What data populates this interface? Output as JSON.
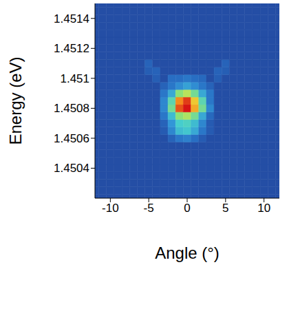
{
  "chart_data": {
    "type": "heatmap",
    "x_label": "Angle (°)",
    "y_label": "Energy (eV)",
    "xlim": [
      -12,
      12
    ],
    "ylim": [
      1.4502,
      1.4515
    ],
    "xticks": [
      -10,
      -5,
      0,
      5,
      10
    ],
    "yticks": [
      1.4504,
      1.4506,
      1.4508,
      1.451,
      1.4512,
      1.4514
    ],
    "zlim": [
      0,
      1
    ],
    "x": [
      -12,
      -11,
      -10,
      -9,
      -8,
      -7,
      -6,
      -5,
      -4,
      -3,
      -2,
      -1,
      0,
      1,
      2,
      3,
      4,
      5,
      6,
      7,
      8,
      9,
      10,
      11,
      12
    ],
    "y": [
      1.4502,
      1.45025,
      1.4503,
      1.45035,
      1.4504,
      1.45045,
      1.4505,
      1.45055,
      1.4506,
      1.45065,
      1.4507,
      1.45075,
      1.4508,
      1.45085,
      1.4509,
      1.45095,
      1.451,
      1.45105,
      1.4511,
      1.45115,
      1.4512,
      1.45125,
      1.4513,
      1.45135,
      1.4514,
      1.45145,
      1.4515
    ],
    "z": [
      [
        0,
        0,
        0,
        0,
        0,
        0,
        0,
        0,
        0,
        0,
        0,
        0,
        0,
        0,
        0,
        0,
        0,
        0,
        0,
        0,
        0,
        0,
        0,
        0,
        0
      ],
      [
        0,
        0,
        0,
        0,
        0,
        0,
        0,
        0,
        0,
        0,
        0,
        0,
        0,
        0,
        0,
        0,
        0,
        0,
        0,
        0,
        0,
        0,
        0,
        0,
        0
      ],
      [
        0,
        0,
        0,
        0,
        0,
        0,
        0,
        0,
        0,
        0,
        0,
        0,
        0,
        0,
        0,
        0,
        0,
        0,
        0,
        0,
        0,
        0,
        0,
        0,
        0
      ],
      [
        0,
        0,
        0,
        0,
        0,
        0,
        0,
        0,
        0,
        0,
        0,
        0,
        0,
        0,
        0,
        0,
        0,
        0,
        0,
        0,
        0,
        0,
        0,
        0,
        0
      ],
      [
        0,
        0,
        0,
        0,
        0,
        0,
        0,
        0,
        0,
        0,
        0,
        0,
        0,
        0,
        0,
        0,
        0,
        0,
        0,
        0,
        0,
        0,
        0,
        0,
        0
      ],
      [
        0,
        0,
        0,
        0,
        0,
        0,
        0,
        0,
        0,
        0,
        0,
        0,
        0,
        0,
        0,
        0,
        0,
        0,
        0,
        0,
        0,
        0,
        0,
        0,
        0
      ],
      [
        0,
        0,
        0,
        0,
        0,
        0,
        0,
        0,
        0,
        0,
        0,
        0,
        0,
        0,
        0,
        0,
        0,
        0,
        0,
        0,
        0,
        0,
        0,
        0,
        0
      ],
      [
        0,
        0,
        0,
        0,
        0,
        0,
        0,
        0,
        0,
        0,
        0,
        0,
        0,
        0,
        0,
        0,
        0,
        0,
        0,
        0,
        0,
        0,
        0,
        0,
        0
      ],
      [
        0,
        0,
        0,
        0,
        0,
        0,
        0,
        0,
        0,
        0,
        0.08,
        0.15,
        0.18,
        0.12,
        0.05,
        0,
        0,
        0,
        0,
        0,
        0,
        0,
        0,
        0,
        0
      ],
      [
        0,
        0,
        0,
        0,
        0,
        0,
        0,
        0,
        0,
        0.05,
        0.2,
        0.35,
        0.38,
        0.3,
        0.15,
        0.05,
        0,
        0,
        0,
        0,
        0,
        0,
        0,
        0,
        0
      ],
      [
        0,
        0,
        0,
        0,
        0,
        0,
        0,
        0,
        0,
        0.08,
        0.25,
        0.4,
        0.42,
        0.35,
        0.2,
        0.05,
        0,
        0,
        0,
        0,
        0,
        0,
        0,
        0,
        0
      ],
      [
        0,
        0,
        0,
        0,
        0,
        0,
        0,
        0,
        0,
        0.15,
        0.35,
        0.55,
        0.6,
        0.5,
        0.3,
        0.1,
        0,
        0,
        0,
        0,
        0,
        0,
        0,
        0,
        0
      ],
      [
        0,
        0,
        0,
        0,
        0,
        0,
        0,
        0,
        0,
        0.2,
        0.5,
        0.92,
        1,
        0.8,
        0.5,
        0.2,
        0,
        0,
        0,
        0,
        0,
        0,
        0,
        0,
        0
      ],
      [
        0,
        0,
        0,
        0,
        0,
        0,
        0,
        0,
        0,
        0.2,
        0.45,
        0.85,
        0.95,
        0.75,
        0.45,
        0.15,
        0,
        0,
        0,
        0,
        0,
        0,
        0,
        0,
        0
      ],
      [
        0,
        0,
        0,
        0,
        0,
        0,
        0,
        0,
        0,
        0.15,
        0.3,
        0.55,
        0.62,
        0.5,
        0.3,
        0.15,
        0,
        0,
        0,
        0,
        0,
        0,
        0,
        0,
        0
      ],
      [
        0,
        0,
        0,
        0,
        0,
        0,
        0,
        0,
        0,
        0.08,
        0.15,
        0.22,
        0.28,
        0.22,
        0.15,
        0.08,
        0,
        0,
        0,
        0,
        0,
        0,
        0,
        0,
        0
      ],
      [
        0,
        0,
        0,
        0,
        0,
        0,
        0,
        0,
        0.06,
        0,
        0.12,
        0.12,
        0.15,
        0.12,
        0.1,
        0,
        0.06,
        0,
        0,
        0,
        0,
        0,
        0,
        0,
        0
      ],
      [
        0,
        0,
        0,
        0,
        0,
        0,
        0,
        0.06,
        0.08,
        0,
        0,
        0,
        0,
        0,
        0,
        0,
        0.08,
        0.06,
        0,
        0,
        0,
        0,
        0,
        0,
        0
      ],
      [
        0,
        0,
        0,
        0,
        0,
        0,
        0,
        0.08,
        0,
        0,
        0,
        0,
        0,
        0,
        0,
        0,
        0,
        0.08,
        0,
        0,
        0,
        0,
        0,
        0,
        0
      ],
      [
        0,
        0,
        0,
        0,
        0,
        0,
        0,
        0,
        0,
        0,
        0,
        0,
        0,
        0,
        0,
        0,
        0,
        0,
        0,
        0,
        0,
        0,
        0,
        0,
        0
      ],
      [
        0,
        0,
        0,
        0,
        0,
        0,
        0,
        0,
        0,
        0,
        0,
        0,
        0,
        0,
        0,
        0,
        0,
        0,
        0,
        0,
        0,
        0,
        0,
        0,
        0
      ],
      [
        0,
        0,
        0,
        0,
        0,
        0,
        0,
        0,
        0,
        0,
        0,
        0,
        0,
        0,
        0,
        0,
        0,
        0,
        0,
        0,
        0,
        0,
        0,
        0,
        0
      ],
      [
        0,
        0,
        0,
        0,
        0,
        0,
        0,
        0,
        0,
        0,
        0,
        0,
        0,
        0,
        0,
        0,
        0,
        0,
        0,
        0,
        0,
        0,
        0,
        0,
        0
      ],
      [
        0,
        0,
        0,
        0,
        0,
        0,
        0,
        0,
        0,
        0,
        0,
        0,
        0,
        0,
        0,
        0,
        0,
        0,
        0,
        0,
        0,
        0,
        0,
        0,
        0
      ],
      [
        0,
        0,
        0,
        0,
        0,
        0,
        0,
        0,
        0,
        0,
        0,
        0,
        0,
        0,
        0,
        0,
        0,
        0,
        0,
        0,
        0,
        0,
        0,
        0,
        0
      ],
      [
        0,
        0,
        0,
        0,
        0,
        0,
        0,
        0,
        0,
        0,
        0,
        0,
        0,
        0,
        0,
        0,
        0,
        0,
        0,
        0,
        0,
        0,
        0,
        0,
        0
      ],
      [
        0,
        0,
        0,
        0,
        0,
        0,
        0,
        0,
        0,
        0,
        0,
        0,
        0,
        0,
        0,
        0,
        0,
        0,
        0,
        0,
        0,
        0,
        0,
        0,
        0
      ]
    ]
  }
}
